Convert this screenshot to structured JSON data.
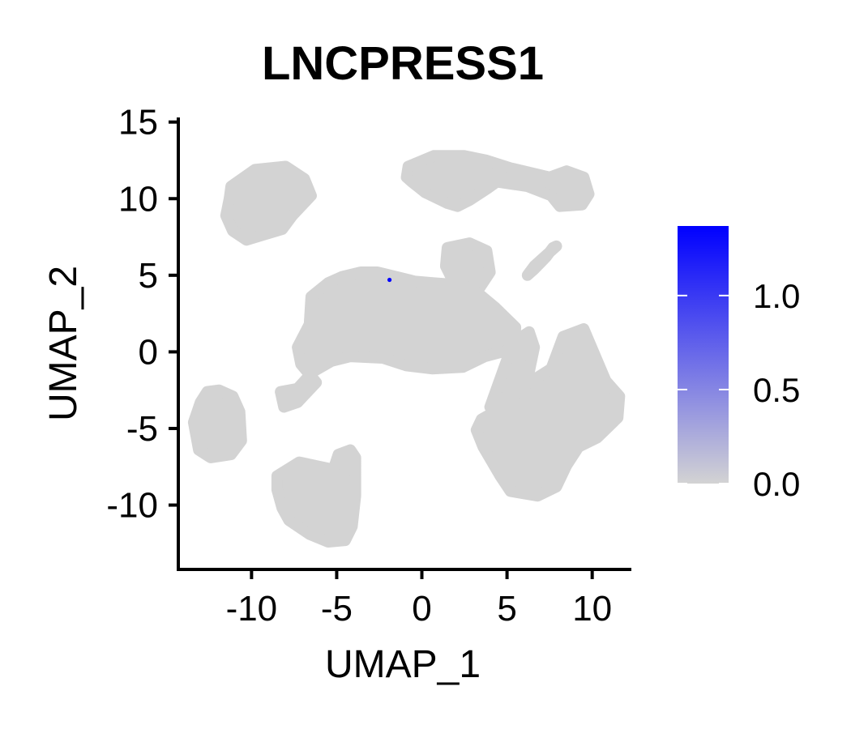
{
  "chart_data": {
    "type": "scatter",
    "title": "LNCPRESS1",
    "xlabel": "UMAP_1",
    "ylabel": "UMAP_2",
    "xlim": [
      -14.3,
      12.3
    ],
    "ylim": [
      -14.2,
      15.3
    ],
    "xticks": [
      -10,
      -5,
      0,
      5,
      10
    ],
    "yticks": [
      -10,
      -5,
      0,
      5,
      10,
      15
    ],
    "xtick_labels": [
      "-10",
      "-5",
      "0",
      "5",
      "10"
    ],
    "ytick_labels": [
      "-10",
      "-5",
      "0",
      "5",
      "10",
      "15"
    ],
    "grid": false,
    "color_low": "#d3d3d3",
    "color_high": "#0000ff",
    "colorbar": {
      "range": [
        0,
        1.37
      ],
      "ticks": [
        0.0,
        0.5,
        1.0
      ],
      "tick_labels": [
        "0.0",
        "0.5",
        "1.0"
      ],
      "placement": "right"
    },
    "clusters": [
      {
        "name": "upper-left",
        "x": [
          -11.2,
          -9.8,
          -8.0,
          -6.9,
          -6.5,
          -7.6,
          -8.2,
          -9.4,
          -10.3,
          -11.1,
          -11.5,
          -11.3
        ],
        "y": [
          10.8,
          11.9,
          12.1,
          11.3,
          10.2,
          8.9,
          8.0,
          7.6,
          7.3,
          7.9,
          8.9,
          10.0
        ],
        "value": 0.0
      },
      {
        "name": "upper-right",
        "x": [
          -0.8,
          0.7,
          2.5,
          3.8,
          5.2,
          7.5,
          8.5,
          9.5,
          9.8,
          9.4,
          8.1,
          7.6,
          6.2,
          4.4,
          3.9,
          2.8,
          2.1,
          1.5,
          0.2,
          -0.6,
          -0.9
        ],
        "y": [
          12.1,
          12.8,
          12.8,
          12.5,
          12.0,
          11.4,
          11.8,
          11.4,
          10.3,
          9.6,
          9.5,
          10.2,
          10.8,
          11.1,
          10.7,
          9.9,
          9.5,
          9.7,
          10.4,
          11.1,
          11.4
        ],
        "value": 0.0
      },
      {
        "name": "small-top",
        "x": [
          1.5,
          2.8,
          3.8,
          4.0,
          3.4,
          2.2,
          1.8,
          1.4
        ],
        "y": [
          6.8,
          7.1,
          6.6,
          5.2,
          4.2,
          3.6,
          4.7,
          5.6
        ],
        "value": 0.0
      },
      {
        "name": "diagonal-bar",
        "x": [
          6.2,
          6.6,
          7.4,
          7.9,
          7.7,
          7.3,
          6.6,
          6.2
        ],
        "y": [
          5.0,
          5.6,
          6.4,
          6.9,
          6.8,
          6.2,
          5.4,
          5.0
        ],
        "value": 0.0
      },
      {
        "name": "central",
        "x": [
          -6.5,
          -5.5,
          -4.7,
          -3.6,
          -2.6,
          -1.5,
          -0.4,
          0.7,
          1.9,
          2.9,
          4.3,
          5.5,
          5.4,
          3.7,
          2.4,
          0.6,
          -0.9,
          -2.3,
          -4.2,
          -5.3,
          -6.4,
          -7.3,
          -8.3,
          -8.1,
          -7.3,
          -6.2,
          -7.1,
          -7.3,
          -6.6
        ],
        "y": [
          3.6,
          4.5,
          4.9,
          5.2,
          5.2,
          4.9,
          4.6,
          4.5,
          4.4,
          4.2,
          2.9,
          1.6,
          0.2,
          -0.3,
          -1.0,
          -1.1,
          -0.9,
          -0.4,
          -0.3,
          -0.6,
          -1.3,
          -2.4,
          -2.6,
          -3.6,
          -3.3,
          -2.0,
          -0.8,
          0.3,
          1.8
        ],
        "value": 0.0
      },
      {
        "name": "right-large",
        "x": [
          4.0,
          6.6,
          7.6,
          8.3,
          9.5,
          10.8,
          11.6,
          11.5,
          10.3,
          9.2,
          8.5,
          7.9,
          6.8,
          5.2,
          4.6,
          3.6,
          3.2,
          3.5,
          5.1,
          6.3,
          6.6,
          6.3,
          5.6,
          5.0
        ],
        "y": [
          -3.6,
          -1.8,
          -1.1,
          1.0,
          1.5,
          -1.9,
          -2.9,
          -4.3,
          -5.6,
          -6.2,
          -7.4,
          -8.8,
          -9.4,
          -9.1,
          -8.1,
          -6.2,
          -5.1,
          -4.4,
          -3.4,
          -1.3,
          0.3,
          1.3,
          0.8,
          -0.5
        ],
        "value": 0.0
      },
      {
        "name": "left",
        "x": [
          -13.0,
          -12.6,
          -11.9,
          -11.1,
          -10.7,
          -10.6,
          -11.2,
          -12.4,
          -13.1,
          -13.4
        ],
        "y": [
          -3.3,
          -2.6,
          -2.5,
          -2.9,
          -3.9,
          -5.8,
          -6.7,
          -6.9,
          -6.4,
          -4.6
        ],
        "value": 0.0
      },
      {
        "name": "bottom",
        "x": [
          -8.5,
          -7.2,
          -5.5,
          -5.2,
          -4.9,
          -4.2,
          -3.9,
          -3.9,
          -4.1,
          -4.5,
          -5.5,
          -6.6,
          -7.8,
          -8.2,
          -8.5
        ],
        "y": [
          -8.1,
          -7.2,
          -7.6,
          -7.7,
          -6.7,
          -6.4,
          -6.9,
          -9.4,
          -11.4,
          -12.3,
          -12.4,
          -11.9,
          -11.0,
          -10.2,
          -9.0
        ],
        "value": 0.0
      }
    ],
    "points": [
      {
        "x": -1.9,
        "y": 4.7,
        "value": 1.37
      }
    ]
  }
}
